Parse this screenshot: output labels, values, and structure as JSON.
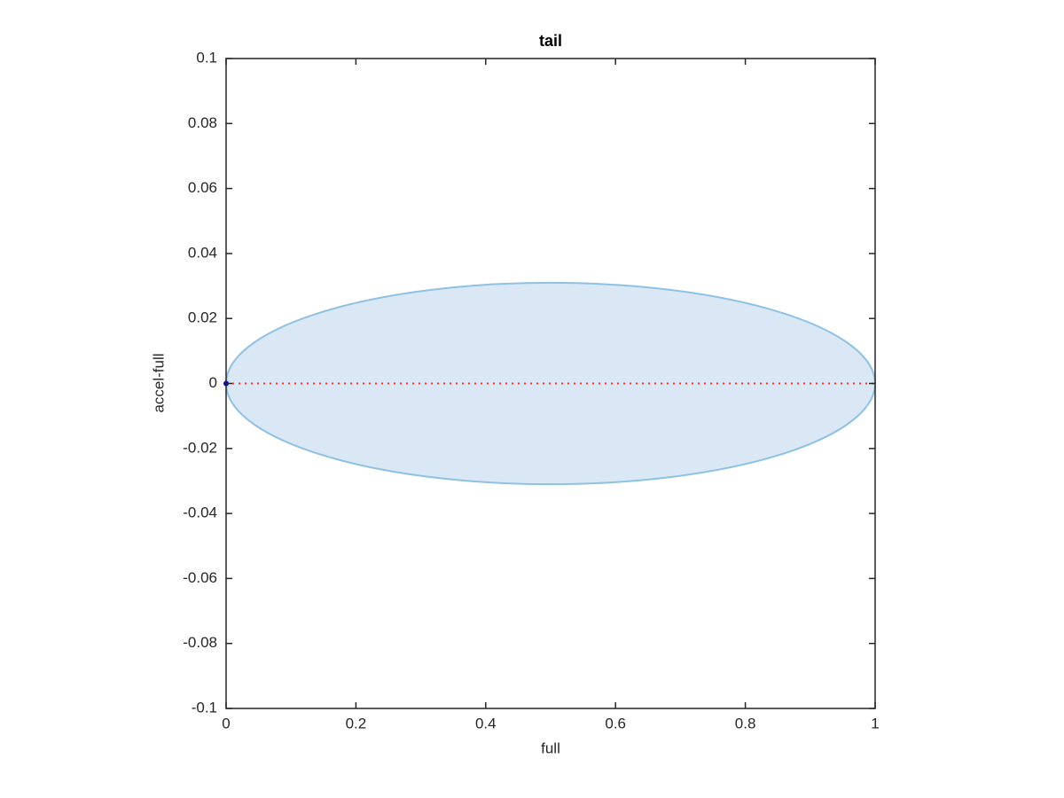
{
  "chart_data": {
    "type": "ellipse",
    "title": "tail",
    "x_label": "full",
    "y_label": "accel-full",
    "xlim": [
      0,
      1
    ],
    "ylim": [
      -0.1,
      0.1
    ],
    "xticks": [
      0,
      0.2,
      0.4,
      0.6,
      0.8,
      1
    ],
    "yticks": [
      -0.1,
      -0.08,
      -0.06,
      -0.04,
      -0.02,
      0,
      0.02,
      0.04,
      0.06,
      0.08,
      0.1
    ],
    "ellipse": {
      "center": [
        0.5,
        0
      ],
      "radii": [
        0.5,
        0.031
      ],
      "fill": "#d9e8f4",
      "edge": "#8fc1e3"
    },
    "line": {
      "x": [
        0,
        1
      ],
      "values": [
        0,
        0
      ],
      "color": "#ff3030"
    },
    "point": {
      "x": 0,
      "value": 0,
      "color": "#0000ff"
    }
  }
}
